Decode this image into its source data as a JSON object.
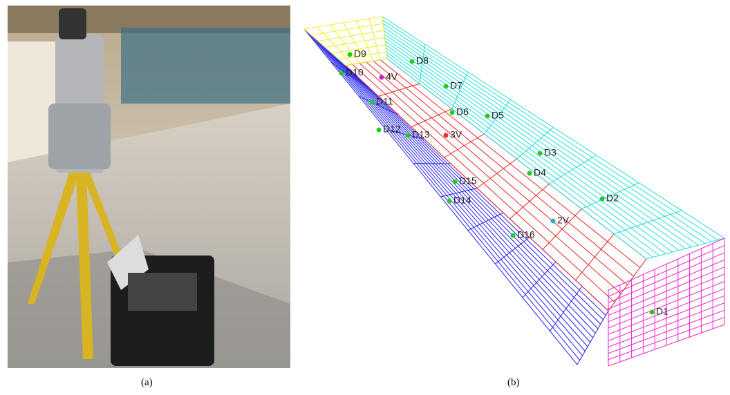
{
  "figure": {
    "panels": [
      {
        "caption": "(a)"
      },
      {
        "caption": "(b)",
        "points": [
          "D9",
          "D8",
          "D10",
          "4V",
          "D7",
          "D11",
          "D6",
          "D5",
          "D12",
          "D13",
          "3V",
          "D3",
          "D4",
          "D15",
          "D2",
          "D14",
          "2V",
          "D16",
          "D1"
        ]
      }
    ]
  }
}
